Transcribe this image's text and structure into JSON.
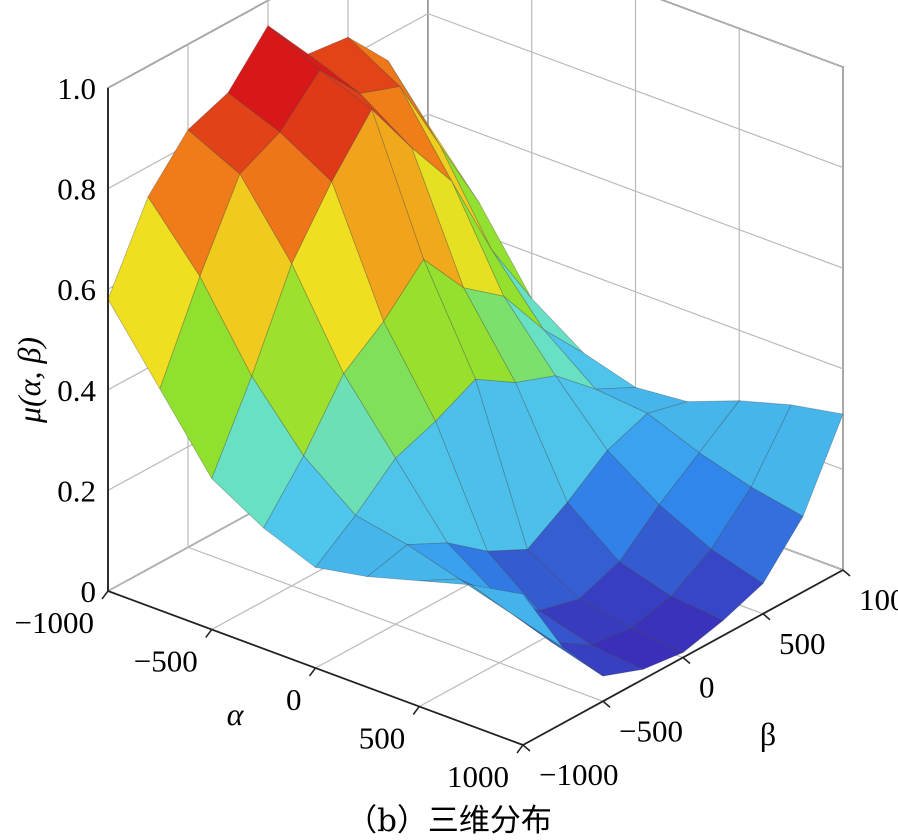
{
  "chart_data": {
    "type": "surface3d",
    "xlabel": "α",
    "ylabel": "β",
    "zlabel": "μ(α, β)",
    "xlim": [
      -1000,
      1000
    ],
    "ylim": [
      -1000,
      1000
    ],
    "zlim": [
      0,
      1
    ],
    "x_ticks": [
      "−1000",
      "−500",
      "0",
      "500",
      "1000"
    ],
    "y_ticks": [
      "−1000",
      "−500",
      "0",
      "500",
      "1000"
    ],
    "z_ticks": [
      "0",
      "0.2",
      "0.4",
      "0.6",
      "0.8",
      "1.0"
    ],
    "x_tick_values": [
      -1000,
      -500,
      0,
      500,
      1000
    ],
    "y_tick_values": [
      -1000,
      -500,
      0,
      500,
      1000
    ],
    "z_tick_values": [
      0,
      0.2,
      0.4,
      0.6,
      0.8,
      1.0
    ],
    "grid": true,
    "colormap": [
      "#3a2fb8",
      "#2f8ff0",
      "#5fe0e8",
      "#8be030",
      "#f0e020",
      "#f08018",
      "#d81818"
    ],
    "surface_grid_x": [
      -1000,
      -750,
      -500,
      -250,
      0,
      250,
      500,
      750,
      1000
    ],
    "surface_grid_y": [
      -1000,
      -750,
      -500,
      -250,
      0,
      250,
      500,
      750,
      1000
    ],
    "surface_z": [
      [
        0.58,
        0.74,
        0.83,
        0.86,
        0.95,
        0.85,
        0.84,
        0.75,
        0.58
      ],
      [
        0.44,
        0.62,
        0.78,
        0.82,
        0.9,
        0.81,
        0.78,
        0.62,
        0.46
      ],
      [
        0.3,
        0.46,
        0.64,
        0.76,
        0.86,
        0.74,
        0.63,
        0.45,
        0.31
      ],
      [
        0.24,
        0.34,
        0.46,
        0.52,
        0.6,
        0.5,
        0.44,
        0.33,
        0.24
      ],
      [
        0.2,
        0.26,
        0.33,
        0.36,
        0.4,
        0.35,
        0.32,
        0.25,
        0.21
      ],
      [
        0.22,
        0.24,
        0.2,
        0.14,
        0.1,
        0.15,
        0.21,
        0.24,
        0.22
      ],
      [
        0.25,
        0.21,
        0.13,
        0.06,
        0.04,
        0.07,
        0.14,
        0.2,
        0.26
      ],
      [
        0.28,
        0.18,
        0.08,
        0.03,
        0.02,
        0.04,
        0.09,
        0.17,
        0.29
      ],
      [
        0.3,
        0.15,
        0.05,
        0.02,
        0.01,
        0.03,
        0.06,
        0.15,
        0.31
      ]
    ]
  },
  "caption": "（b）三维分布"
}
